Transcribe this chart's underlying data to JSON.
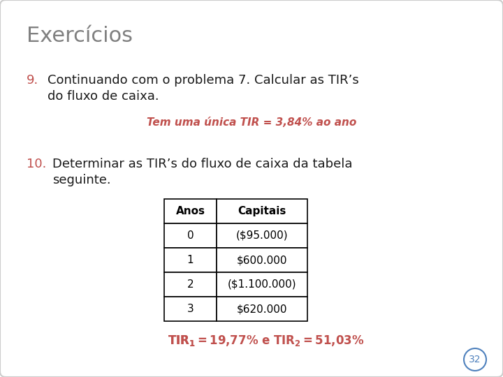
{
  "title": "Exercícios",
  "title_color": "#808080",
  "background_color": "#ffffff",
  "item9_number": "9.",
  "item9_number_color": "#c0504d",
  "item9_text_line1": "Continuando com o problema 7. Calcular as TIR’s",
  "item9_text_line2": "do fluxo de caixa.",
  "item9_text_color": "#1a1a1a",
  "item9_answer": "Tem uma única TIR = 3,84% ao ano",
  "item9_answer_color": "#c0504d",
  "item10_number": "10.",
  "item10_number_color": "#c0504d",
  "item10_text_line1": "Determinar as TIR’s do fluxo de caixa da tabela",
  "item10_text_line2": "seguinte.",
  "item10_text_color": "#1a1a1a",
  "table_headers": [
    "Anos",
    "Capitais"
  ],
  "table_rows": [
    [
      "0",
      "($95.000)"
    ],
    [
      "1",
      "$600.000"
    ],
    [
      "2",
      "($1.100.000)"
    ],
    [
      "3",
      "$620.000"
    ]
  ],
  "table_header_bg": "#ffffff",
  "table_border_color": "#000000",
  "answer_color": "#c0504d",
  "page_number": "32",
  "page_number_color": "#4f81bd",
  "font_size_title": 22,
  "font_size_body": 13,
  "font_size_answer_small": 11,
  "font_size_table": 11,
  "font_size_page": 10
}
